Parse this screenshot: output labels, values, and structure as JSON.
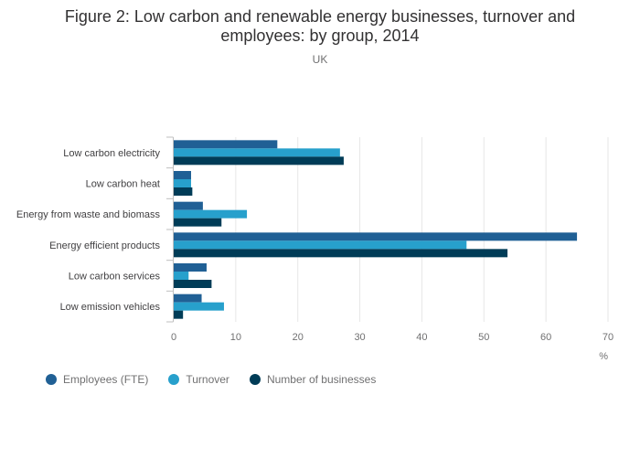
{
  "title_line1": "Figure 2: Low carbon and renewable energy businesses, turnover and",
  "title_line2": "employees: by group, 2014",
  "subtitle": "UK",
  "chart_data": {
    "type": "bar",
    "orientation": "horizontal",
    "categories": [
      "Low carbon electricity",
      "Low carbon heat",
      "Energy from waste and biomass",
      "Energy efficient products",
      "Low carbon services",
      "Low emission vehicles"
    ],
    "series": [
      {
        "name": "Employees (FTE)",
        "color": "#206095",
        "values": [
          16.7,
          2.8,
          4.7,
          65.0,
          5.3,
          4.5
        ]
      },
      {
        "name": "Turnover",
        "color": "#27A0CC",
        "values": [
          26.8,
          2.8,
          11.8,
          47.2,
          2.4,
          8.1
        ]
      },
      {
        "name": "Number of businesses",
        "color": "#003C57",
        "values": [
          27.4,
          3.0,
          7.7,
          53.8,
          6.1,
          1.5
        ]
      }
    ],
    "xticks": [
      0,
      10,
      20,
      30,
      40,
      50,
      60,
      70
    ],
    "xlim": [
      0,
      70
    ],
    "xlabel": "%",
    "grid": true,
    "legend_position": "bottom-left"
  }
}
